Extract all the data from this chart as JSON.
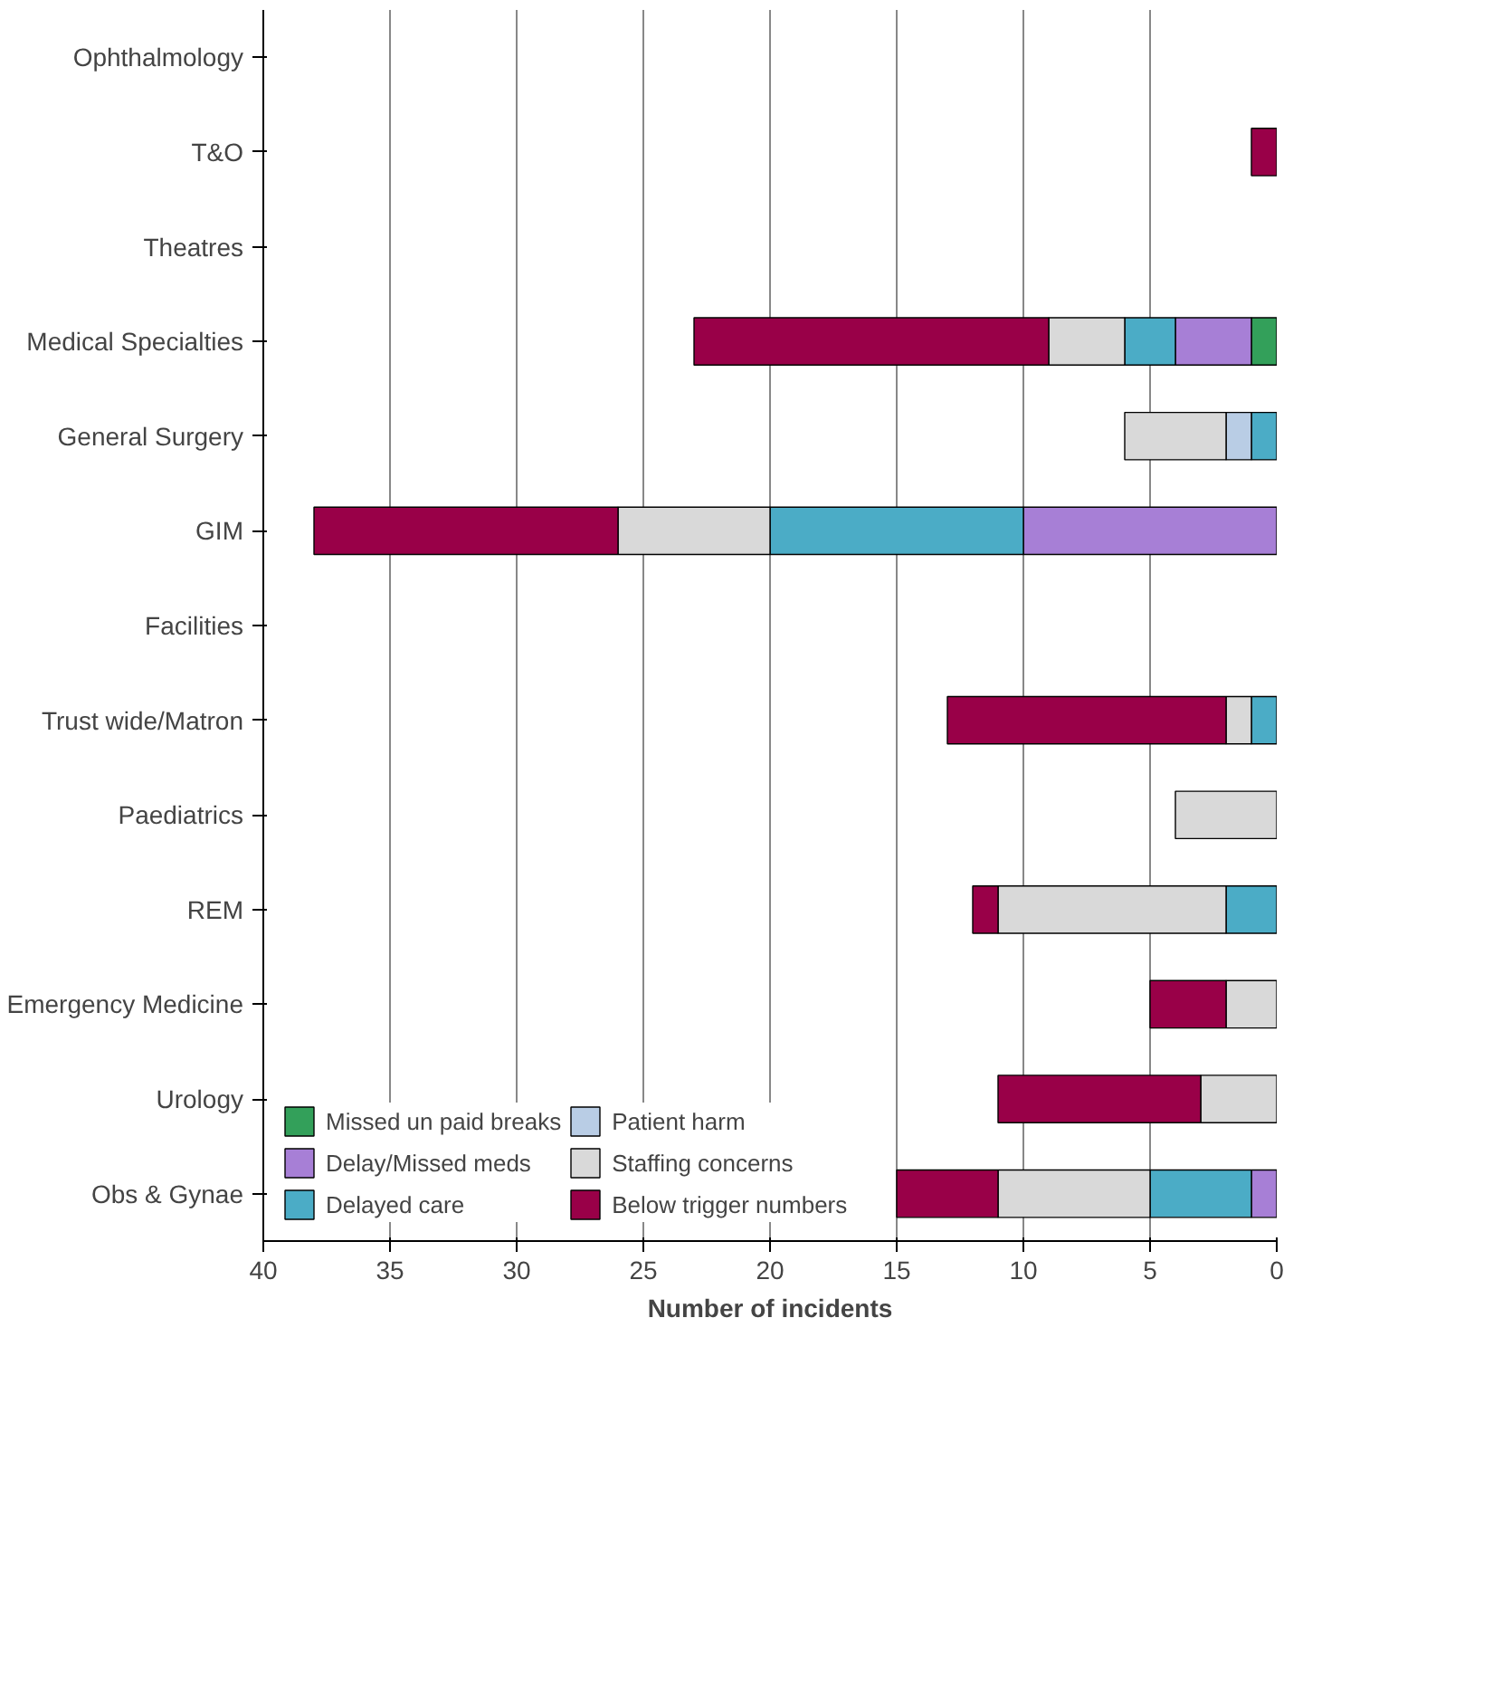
{
  "chart_data": {
    "type": "bar",
    "orientation": "horizontal",
    "stacked": true,
    "xlabel": "Number of incidents",
    "categories": [
      "Ophthalmology",
      "T&O",
      "Theatres",
      "Medical Specialties",
      "General Surgery",
      "GIM",
      "Facilities",
      "Trust wide/Matron",
      "Paediatrics",
      "REM",
      "Emergency Medicine",
      "Urology",
      "Obs & Gynae"
    ],
    "series": [
      {
        "name": "Missed un paid breaks",
        "color": "#33a05a",
        "values": [
          0,
          0,
          0,
          1,
          0,
          0,
          0,
          0,
          0,
          0,
          0,
          0,
          0
        ]
      },
      {
        "name": "Delay/Missed meds",
        "color": "#a77fd6",
        "values": [
          0,
          0,
          0,
          3,
          0,
          10,
          0,
          0,
          0,
          0,
          0,
          0,
          1
        ]
      },
      {
        "name": "Delayed care",
        "color": "#4bacc6",
        "values": [
          0,
          0,
          0,
          2,
          1,
          10,
          0,
          1,
          0,
          2,
          0,
          0,
          4
        ]
      },
      {
        "name": "Patient harm",
        "color": "#b9cde5",
        "values": [
          0,
          0,
          0,
          0,
          1,
          0,
          0,
          0,
          0,
          0,
          0,
          0,
          0
        ]
      },
      {
        "name": "Staffing concerns",
        "color": "#d9d9d9",
        "values": [
          0,
          0,
          0,
          3,
          4,
          6,
          0,
          1,
          4,
          9,
          2,
          3,
          6
        ]
      },
      {
        "name": "Below trigger numbers",
        "color": "#990048",
        "values": [
          0,
          1,
          0,
          14,
          0,
          12,
          0,
          11,
          0,
          1,
          3,
          8,
          4
        ]
      }
    ],
    "xlim": [
      40,
      0
    ],
    "xticks": [
      0,
      5,
      10,
      15,
      20,
      25,
      30,
      35,
      40
    ],
    "grid": "x",
    "legend": "bottom"
  }
}
